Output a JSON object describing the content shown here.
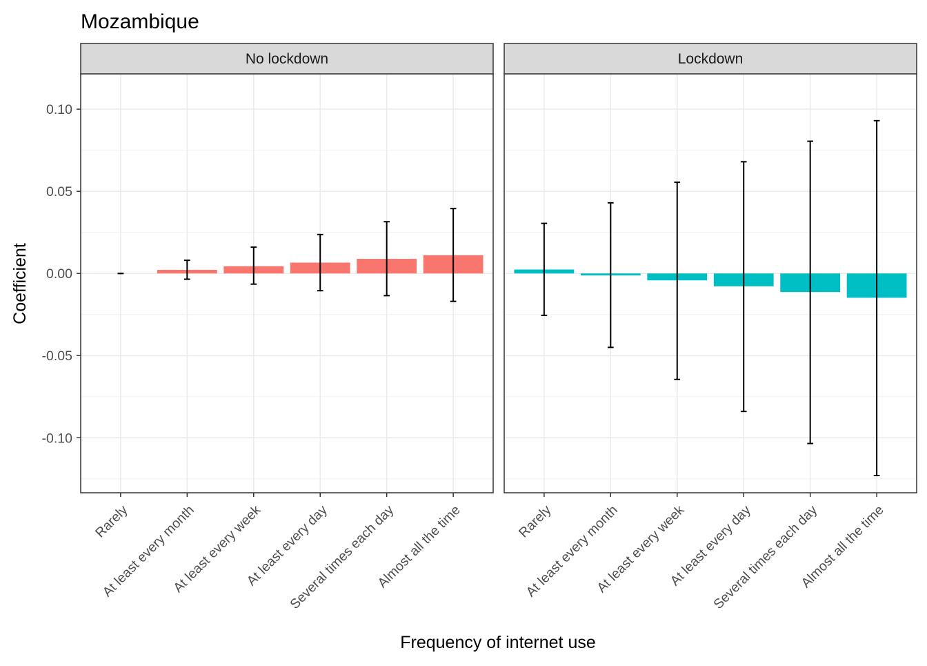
{
  "chart_data": {
    "type": "bar",
    "title": "Mozambique",
    "xlabel": "Frequency of internet use",
    "ylabel": "Coefficient",
    "categories": [
      "Rarely",
      "At least every month",
      "At least every week",
      "At least every day",
      "Several times each day",
      "Almost all the time"
    ],
    "ylim": [
      -0.1335,
      0.1215
    ],
    "yticks": [
      0.1,
      0.05,
      0.0,
      -0.05,
      -0.1
    ],
    "ytick_labels": [
      "0.10",
      "0.05",
      "0.00",
      "-0.05",
      "-0.10"
    ],
    "grid": true,
    "error_bars": true,
    "colors": {
      "no_lockdown": "#F8766D",
      "lockdown": "#00BFC4",
      "strip_background": "#D9D9D9",
      "grid_major": "#EBEBEB",
      "grid_minor": "#F2F2F2",
      "panel_border": "#333333"
    },
    "facets": [
      {
        "label": "No lockdown",
        "values": [
          0.0,
          0.0022,
          0.0044,
          0.0066,
          0.0089,
          0.0111
        ],
        "ci_low": [
          0.0,
          -0.0035,
          -0.0065,
          -0.0105,
          -0.0135,
          -0.017
        ],
        "ci_high": [
          0.0,
          0.008,
          0.016,
          0.0237,
          0.0315,
          0.0395
        ]
      },
      {
        "label": "Lockdown",
        "values": [
          0.0024,
          -0.0012,
          -0.0042,
          -0.0078,
          -0.0113,
          -0.0148
        ],
        "ci_low": [
          -0.0255,
          -0.045,
          -0.0645,
          -0.084,
          -0.1035,
          -0.123
        ],
        "ci_high": [
          0.0305,
          0.043,
          0.0555,
          0.068,
          0.0805,
          0.093
        ]
      }
    ]
  }
}
